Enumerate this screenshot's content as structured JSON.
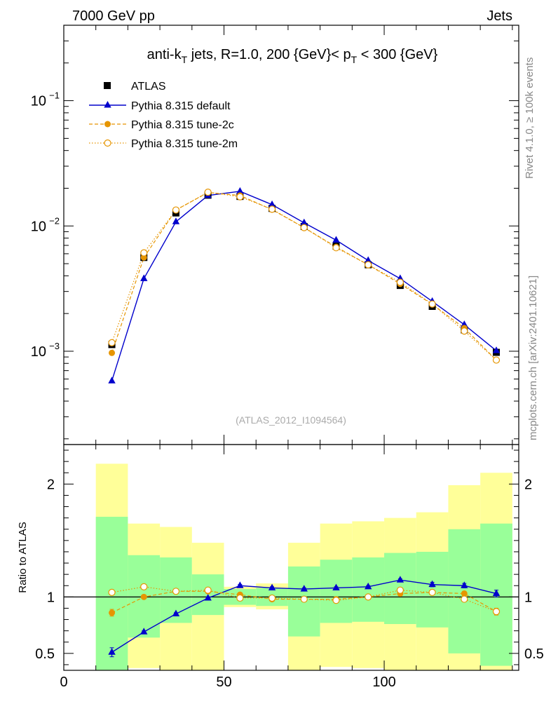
{
  "header": {
    "left": "7000 GeV pp",
    "right": "Jets"
  },
  "side_labels": {
    "rivet": "Rivet 4.1.0, ≥ 100k events",
    "mcplots": "mcplots.cern.ch [arXiv:2401.10621]"
  },
  "chart_data": [
    {
      "type": "line",
      "title_parts": {
        "a": "anti-k",
        "a_sub": "T",
        "b": " jets, R=1.0, 200 {GeV}< p",
        "b_sub": "T",
        "c": " < 300 {GeV}"
      },
      "watermark": "(ATLAS_2012_I1094564)",
      "yscale": "log",
      "ylim": [
        0.00018,
        0.4
      ],
      "xlim": [
        0,
        142
      ],
      "ytick_labels": [
        {
          "base": "10",
          "exp": "−1",
          "value": 0.1
        },
        {
          "base": "10",
          "exp": "−2",
          "value": 0.01
        },
        {
          "base": "10",
          "exp": "−3",
          "value": 0.001
        }
      ],
      "x": [
        15,
        25,
        35,
        45,
        55,
        65,
        75,
        85,
        95,
        105,
        115,
        125,
        135
      ],
      "series": [
        {
          "name": "ATLAS",
          "style": "data",
          "color": "#000000",
          "values": [
            0.00113,
            0.0056,
            0.0127,
            0.0176,
            0.0172,
            0.0138,
            0.0099,
            0.0069,
            0.0049,
            0.00335,
            0.00228,
            0.00148,
            0.00098
          ]
        },
        {
          "name": "Pythia 8.315 default",
          "style": "solid",
          "color": "#0000cc",
          "values": [
            0.00058,
            0.0038,
            0.0108,
            0.0175,
            0.0189,
            0.0148,
            0.0106,
            0.0077,
            0.0053,
            0.0038,
            0.0025,
            0.00163,
            0.00101
          ]
        },
        {
          "name": "Pythia 8.315 tune-2c",
          "style": "dashed",
          "color": "#e69500",
          "values": [
            0.00097,
            0.0056,
            0.0134,
            0.0185,
            0.0175,
            0.0135,
            0.0097,
            0.0068,
            0.0049,
            0.00345,
            0.00237,
            0.00153,
            0.00085
          ]
        },
        {
          "name": "Pythia 8.315 tune-2m",
          "style": "dotted",
          "color": "#e69500",
          "values": [
            0.00117,
            0.0061,
            0.0134,
            0.0186,
            0.0171,
            0.0136,
            0.0097,
            0.0067,
            0.0049,
            0.00355,
            0.00238,
            0.00145,
            0.00085
          ]
        }
      ]
    },
    {
      "type": "line",
      "ylabel": "Ratio to ATLAS",
      "ylim": [
        0.35,
        2.35
      ],
      "xlim": [
        0,
        142
      ],
      "yticks": [
        0.5,
        1,
        2
      ],
      "ytick_labels": [
        "0.5",
        "1",
        "2"
      ],
      "xticks": [
        0,
        50,
        100
      ],
      "xtick_labels": [
        "0",
        "50",
        "100"
      ],
      "x": [
        15,
        25,
        35,
        45,
        55,
        65,
        75,
        85,
        95,
        105,
        115,
        125,
        135
      ],
      "bin_edges": [
        10,
        20,
        30,
        40,
        50,
        60,
        70,
        80,
        90,
        100,
        110,
        120,
        130,
        140
      ],
      "band_yellow": {
        "low": [
          0.35,
          0.37,
          0.35,
          0.35,
          0.91,
          0.89,
          0.35,
          0.38,
          0.37,
          0.35,
          0.35,
          0.35,
          0.35
        ],
        "high": [
          2.18,
          1.65,
          1.62,
          1.48,
          1.09,
          1.12,
          1.48,
          1.65,
          1.67,
          1.7,
          1.75,
          1.99,
          2.1
        ]
      },
      "band_green": {
        "low": [
          0.35,
          0.64,
          0.77,
          0.84,
          0.93,
          0.92,
          0.65,
          0.77,
          0.78,
          0.76,
          0.73,
          0.5,
          0.39
        ],
        "high": [
          1.71,
          1.37,
          1.35,
          1.2,
          1.07,
          1.08,
          1.27,
          1.33,
          1.35,
          1.39,
          1.4,
          1.6,
          1.65
        ]
      },
      "series": [
        {
          "name": "Pythia 8.315 default",
          "style": "solid",
          "color": "#0000cc",
          "values": [
            0.51,
            0.69,
            0.85,
            0.99,
            1.1,
            1.08,
            1.07,
            1.08,
            1.09,
            1.15,
            1.11,
            1.1,
            1.03
          ],
          "errors": [
            0.04,
            0.01,
            0.01,
            0.01,
            0.01,
            0.01,
            0.01,
            0.01,
            0.01,
            0.01,
            0.02,
            0.02,
            0.03
          ]
        },
        {
          "name": "Pythia 8.315 tune-2c",
          "style": "dashed",
          "color": "#e69500",
          "values": [
            0.86,
            1.0,
            1.05,
            1.05,
            1.02,
            0.98,
            0.98,
            0.98,
            1.0,
            1.03,
            1.04,
            1.03,
            0.87
          ],
          "errors": [
            0.03,
            0.01,
            0.01,
            0.01,
            0.01,
            0.01,
            0.01,
            0.01,
            0.01,
            0.01,
            0.01,
            0.02,
            0.03
          ]
        },
        {
          "name": "Pythia 8.315 tune-2m",
          "style": "dotted",
          "color": "#e69500",
          "values": [
            1.04,
            1.09,
            1.05,
            1.06,
            0.99,
            0.99,
            0.98,
            0.97,
            1.0,
            1.06,
            1.04,
            0.98,
            0.87
          ],
          "errors": [
            0.02,
            0.01,
            0.01,
            0.01,
            0.01,
            0.01,
            0.01,
            0.01,
            0.01,
            0.01,
            0.01,
            0.02,
            0.03
          ]
        }
      ]
    }
  ]
}
